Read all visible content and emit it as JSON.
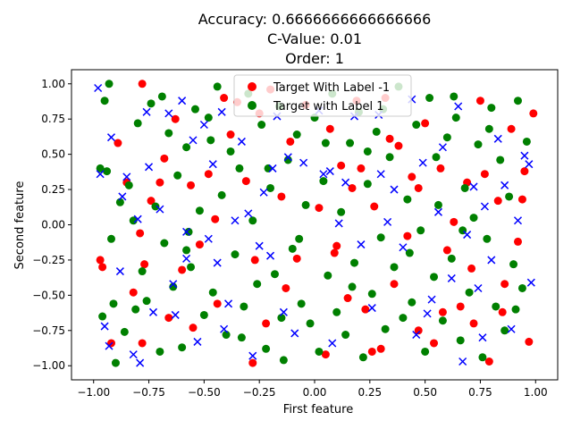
{
  "chart_data": {
    "type": "scatter",
    "title_lines": [
      "Accuracy: 0.6666666666666666",
      "C-Value: 0.01",
      "Order: 1"
    ],
    "xlabel": "First feature",
    "ylabel": "Second feature",
    "xlim": [
      -1.1,
      1.1
    ],
    "ylim": [
      -1.1,
      1.1
    ],
    "xticks": [
      -1.0,
      -0.75,
      -0.5,
      -0.25,
      0.0,
      0.25,
      0.5,
      0.75,
      1.0
    ],
    "xtick_labels": [
      "−1.00",
      "−0.75",
      "−0.50",
      "−0.25",
      "0.00",
      "0.25",
      "0.50",
      "0.75",
      "1.00"
    ],
    "yticks": [
      -1.0,
      -0.75,
      -0.5,
      -0.25,
      0.0,
      0.25,
      0.5,
      0.75,
      1.0
    ],
    "ytick_labels": [
      "−1.00",
      "−0.75",
      "−0.50",
      "−0.25",
      "0.00",
      "0.25",
      "0.50",
      "0.75",
      "1.00"
    ],
    "grid": false,
    "legend_position": "top-center",
    "series": [
      {
        "name": "Target With Label -1",
        "marker": "circle",
        "color": "#ff0000",
        "points": [
          [
            -0.78,
            1.0
          ],
          [
            -0.97,
            -0.25
          ],
          [
            -0.96,
            -0.3
          ],
          [
            -0.89,
            0.58
          ],
          [
            -0.85,
            0.3
          ],
          [
            -0.79,
            -0.06
          ],
          [
            -0.78,
            -0.84
          ],
          [
            -0.77,
            -0.28
          ],
          [
            -0.68,
            0.47
          ],
          [
            -0.66,
            -0.66
          ],
          [
            -0.63,
            0.75
          ],
          [
            -0.56,
            0.28
          ],
          [
            -0.55,
            -0.73
          ],
          [
            -0.48,
            0.36
          ],
          [
            -0.45,
            0.04
          ],
          [
            -0.44,
            -0.56
          ],
          [
            -0.41,
            0.9
          ],
          [
            -0.35,
            0.87
          ],
          [
            -0.31,
            0.31
          ],
          [
            -0.27,
            -0.25
          ],
          [
            -0.22,
            -0.7
          ],
          [
            -0.2,
            0.96
          ],
          [
            -0.15,
            0.2
          ],
          [
            -0.11,
            0.59
          ],
          [
            -0.08,
            -0.24
          ],
          [
            -0.04,
            0.85
          ],
          [
            0.05,
            -0.92
          ],
          [
            0.07,
            0.68
          ],
          [
            0.1,
            -0.15
          ],
          [
            0.12,
            0.42
          ],
          [
            0.15,
            -0.52
          ],
          [
            0.19,
            0.88
          ],
          [
            0.21,
            0.4
          ],
          [
            0.23,
            -0.6
          ],
          [
            0.27,
            0.13
          ],
          [
            0.3,
            -0.88
          ],
          [
            0.32,
            0.9
          ],
          [
            0.36,
            -0.42
          ],
          [
            0.38,
            0.56
          ],
          [
            0.42,
            -0.08
          ],
          [
            0.44,
            0.34
          ],
          [
            0.47,
            -0.75
          ],
          [
            0.5,
            0.72
          ],
          [
            0.54,
            -0.84
          ],
          [
            0.57,
            0.4
          ],
          [
            0.6,
            -0.18
          ],
          [
            0.63,
            0.02
          ],
          [
            0.66,
            -0.58
          ],
          [
            0.69,
            0.3
          ],
          [
            0.72,
            -0.7
          ],
          [
            0.75,
            0.88
          ],
          [
            0.77,
            0.36
          ],
          [
            0.79,
            -0.97
          ],
          [
            0.83,
            0.17
          ],
          [
            0.86,
            -0.42
          ],
          [
            0.89,
            0.68
          ],
          [
            0.92,
            -0.12
          ],
          [
            0.95,
            0.38
          ],
          [
            0.97,
            -0.83
          ],
          [
            0.99,
            0.79
          ],
          [
            -0.92,
            -0.84
          ],
          [
            -0.82,
            -0.48
          ],
          [
            -0.74,
            0.17
          ],
          [
            -0.6,
            -0.32
          ],
          [
            -0.52,
            -0.14
          ],
          [
            -0.38,
            0.64
          ],
          [
            -0.25,
            0.79
          ],
          [
            -0.13,
            -0.45
          ],
          [
            0.02,
            0.12
          ],
          [
            0.17,
            0.26
          ],
          [
            0.34,
            0.61
          ],
          [
            0.47,
            0.26
          ],
          [
            0.58,
            -0.62
          ],
          [
            0.71,
            -0.31
          ],
          [
            0.85,
            -0.62
          ],
          [
            0.94,
            0.18
          ],
          [
            -0.7,
            0.3
          ],
          [
            -0.28,
            -0.98
          ],
          [
            0.09,
            -0.2
          ],
          [
            0.26,
            -0.9
          ]
        ]
      },
      {
        "name": "Target with Label 1",
        "marker": "circle",
        "color": "#008000",
        "points": [
          [
            -0.97,
            0.4
          ],
          [
            -0.96,
            -0.65
          ],
          [
            -0.95,
            0.88
          ],
          [
            -0.93,
            1.0
          ],
          [
            -0.92,
            -0.1
          ],
          [
            -0.91,
            -0.56
          ],
          [
            -0.9,
            -0.98
          ],
          [
            -0.88,
            0.16
          ],
          [
            -0.86,
            -0.76
          ],
          [
            -0.84,
            0.28
          ],
          [
            -0.82,
            0.03
          ],
          [
            -0.8,
            0.72
          ],
          [
            -0.78,
            -0.33
          ],
          [
            -0.76,
            -0.54
          ],
          [
            -0.74,
            0.86
          ],
          [
            -0.72,
            0.13
          ],
          [
            -0.7,
            -0.9
          ],
          [
            -0.68,
            -0.13
          ],
          [
            -0.66,
            0.65
          ],
          [
            -0.64,
            -0.44
          ],
          [
            -0.62,
            0.35
          ],
          [
            -0.6,
            -0.87
          ],
          [
            -0.58,
            0.55
          ],
          [
            -0.56,
            -0.3
          ],
          [
            -0.54,
            0.82
          ],
          [
            -0.52,
            0.1
          ],
          [
            -0.5,
            -0.64
          ],
          [
            -0.48,
            0.76
          ],
          [
            -0.46,
            -0.48
          ],
          [
            -0.44,
            0.98
          ],
          [
            -0.42,
            0.21
          ],
          [
            -0.4,
            -0.78
          ],
          [
            -0.38,
            0.52
          ],
          [
            -0.36,
            -0.21
          ],
          [
            -0.34,
            0.4
          ],
          [
            -0.32,
            -0.58
          ],
          [
            -0.3,
            0.93
          ],
          [
            -0.28,
            0.03
          ],
          [
            -0.26,
            -0.42
          ],
          [
            -0.24,
            0.71
          ],
          [
            -0.22,
            -0.88
          ],
          [
            -0.2,
            0.26
          ],
          [
            -0.18,
            -0.35
          ],
          [
            -0.16,
            0.84
          ],
          [
            -0.14,
            -0.96
          ],
          [
            -0.12,
            0.46
          ],
          [
            -0.1,
            -0.17
          ],
          [
            -0.08,
            0.64
          ],
          [
            -0.06,
            -0.56
          ],
          [
            -0.04,
            0.14
          ],
          [
            -0.02,
            -0.7
          ],
          [
            0.0,
            0.76
          ],
          [
            0.02,
            -0.9
          ],
          [
            0.04,
            0.31
          ],
          [
            0.06,
            -0.36
          ],
          [
            0.08,
            0.93
          ],
          [
            0.1,
            -0.62
          ],
          [
            0.12,
            0.09
          ],
          [
            0.14,
            -0.78
          ],
          [
            0.16,
            0.58
          ],
          [
            0.18,
            -0.27
          ],
          [
            0.2,
            0.8
          ],
          [
            0.22,
            -0.94
          ],
          [
            0.24,
            0.29
          ],
          [
            0.26,
            -0.49
          ],
          [
            0.28,
            0.66
          ],
          [
            0.3,
            -0.09
          ],
          [
            0.32,
            -0.74
          ],
          [
            0.34,
            0.48
          ],
          [
            0.36,
            -0.3
          ],
          [
            0.38,
            0.98
          ],
          [
            0.4,
            -0.66
          ],
          [
            0.42,
            0.18
          ],
          [
            0.44,
            -0.55
          ],
          [
            0.46,
            0.71
          ],
          [
            0.48,
            -0.04
          ],
          [
            0.5,
            -0.9
          ],
          [
            0.52,
            0.9
          ],
          [
            0.54,
            -0.37
          ],
          [
            0.56,
            0.14
          ],
          [
            0.58,
            -0.68
          ],
          [
            0.6,
            0.62
          ],
          [
            0.62,
            -0.24
          ],
          [
            0.64,
            0.76
          ],
          [
            0.66,
            -0.82
          ],
          [
            0.68,
            0.26
          ],
          [
            0.7,
            -0.48
          ],
          [
            0.72,
            0.05
          ],
          [
            0.74,
            0.57
          ],
          [
            0.76,
            -0.94
          ],
          [
            0.78,
            -0.1
          ],
          [
            0.8,
            0.83
          ],
          [
            0.82,
            -0.58
          ],
          [
            0.84,
            0.46
          ],
          [
            0.86,
            -0.75
          ],
          [
            0.88,
            0.2
          ],
          [
            0.9,
            -0.28
          ],
          [
            0.92,
            0.88
          ],
          [
            0.94,
            -0.45
          ],
          [
            0.96,
            0.59
          ],
          [
            -0.94,
            0.38
          ],
          [
            -0.81,
            -0.6
          ],
          [
            -0.69,
            0.91
          ],
          [
            -0.57,
            -0.05
          ],
          [
            -0.47,
            0.6
          ],
          [
            -0.33,
            -0.8
          ],
          [
            -0.21,
            0.4
          ],
          [
            -0.07,
            -0.1
          ],
          [
            0.05,
            0.58
          ],
          [
            0.17,
            -0.44
          ],
          [
            0.31,
            0.82
          ],
          [
            0.43,
            -0.2
          ],
          [
            0.55,
            0.48
          ],
          [
            0.67,
            -0.04
          ],
          [
            0.79,
            0.68
          ],
          [
            0.91,
            -0.6
          ],
          [
            -0.58,
            -0.18
          ],
          [
            0.24,
            0.52
          ],
          [
            -0.15,
            -0.66
          ],
          [
            0.63,
            0.91
          ]
        ]
      },
      {
        "name": "",
        "marker": "x",
        "color": "#0000ff",
        "points": [
          [
            -0.98,
            0.97
          ],
          [
            -0.97,
            0.36
          ],
          [
            -0.95,
            -0.72
          ],
          [
            -0.93,
            -0.86
          ],
          [
            -0.92,
            0.62
          ],
          [
            -0.88,
            -0.33
          ],
          [
            -0.85,
            0.34
          ],
          [
            -0.82,
            -0.92
          ],
          [
            -0.8,
            0.04
          ],
          [
            -0.79,
            -0.98
          ],
          [
            -0.76,
            0.8
          ],
          [
            -0.75,
            0.41
          ],
          [
            -0.73,
            -0.62
          ],
          [
            -0.7,
            0.11
          ],
          [
            -0.66,
            0.79
          ],
          [
            -0.63,
            -0.64
          ],
          [
            -0.6,
            0.88
          ],
          [
            -0.58,
            -0.24
          ],
          [
            -0.55,
            0.6
          ],
          [
            -0.53,
            -0.83
          ],
          [
            -0.5,
            0.71
          ],
          [
            -0.48,
            -0.1
          ],
          [
            -0.46,
            0.43
          ],
          [
            -0.44,
            -0.27
          ],
          [
            -0.42,
            0.8
          ],
          [
            -0.39,
            -0.56
          ],
          [
            -0.36,
            0.03
          ],
          [
            -0.33,
            0.59
          ],
          [
            -0.3,
            0.08
          ],
          [
            -0.28,
            -0.93
          ],
          [
            -0.25,
            -0.15
          ],
          [
            -0.23,
            0.23
          ],
          [
            -0.2,
            -0.22
          ],
          [
            -0.17,
            0.77
          ],
          [
            -0.14,
            -0.62
          ],
          [
            -0.12,
            0.48
          ],
          [
            -0.09,
            -0.77
          ],
          [
            -0.05,
            0.44
          ],
          [
            0.02,
            0.81
          ],
          [
            0.04,
            0.36
          ],
          [
            0.08,
            -0.84
          ],
          [
            0.11,
            0.01
          ],
          [
            0.14,
            0.3
          ],
          [
            0.18,
            0.77
          ],
          [
            0.21,
            -0.14
          ],
          [
            0.26,
            -0.59
          ],
          [
            0.3,
            0.36
          ],
          [
            0.33,
            0.02
          ],
          [
            0.36,
            0.25
          ],
          [
            0.4,
            -0.16
          ],
          [
            0.44,
            0.89
          ],
          [
            0.46,
            -0.78
          ],
          [
            0.49,
            0.44
          ],
          [
            0.53,
            -0.53
          ],
          [
            0.56,
            0.09
          ],
          [
            0.58,
            0.55
          ],
          [
            0.62,
            -0.38
          ],
          [
            0.65,
            0.84
          ],
          [
            0.67,
            -0.97
          ],
          [
            0.69,
            -0.07
          ],
          [
            0.72,
            0.27
          ],
          [
            0.74,
            -0.45
          ],
          [
            0.77,
            0.13
          ],
          [
            0.8,
            -0.25
          ],
          [
            0.83,
            0.61
          ],
          [
            0.86,
            0.28
          ],
          [
            0.89,
            -0.74
          ],
          [
            0.92,
            0.03
          ],
          [
            0.95,
            0.49
          ],
          [
            0.98,
            -0.41
          ],
          [
            -0.87,
            0.2
          ],
          [
            -0.64,
            -0.42
          ],
          [
            -0.41,
            -0.74
          ],
          [
            -0.19,
            0.4
          ],
          [
            0.07,
            0.38
          ],
          [
            0.29,
            0.78
          ],
          [
            0.51,
            -0.63
          ],
          [
            0.76,
            -0.8
          ],
          [
            0.97,
            0.43
          ],
          [
            -0.58,
            -0.05
          ]
        ]
      }
    ]
  },
  "colors": {
    "axis": "#000000",
    "background": "#ffffff"
  }
}
